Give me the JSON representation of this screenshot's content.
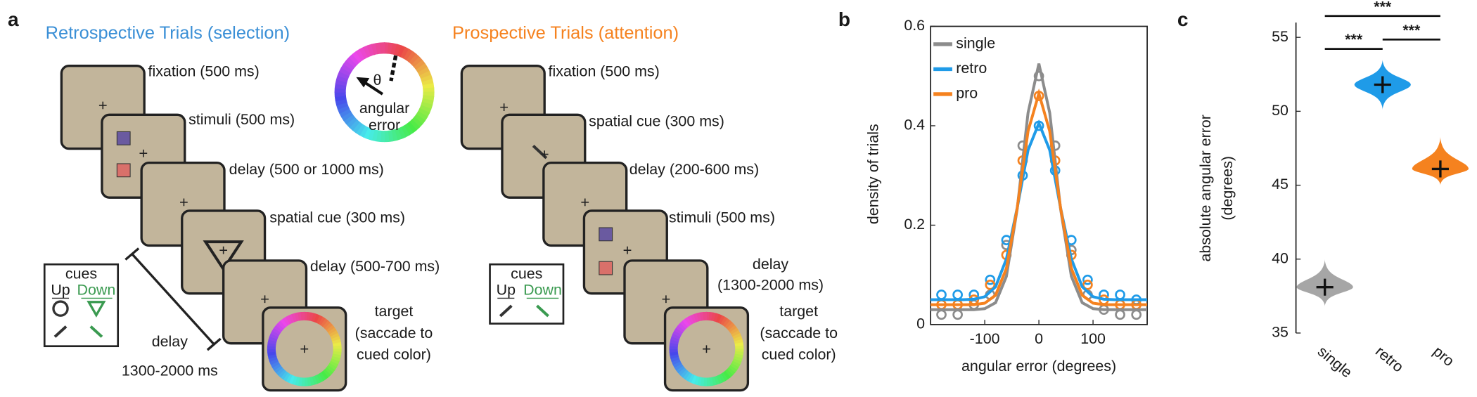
{
  "panel_labels": [
    "a",
    "b",
    "c"
  ],
  "panel_a": {
    "retro": {
      "title": "Retrospective Trials (selection)",
      "steps": [
        "fixation (500 ms)",
        "stimuli (500 ms)",
        "delay (500 or 1000 ms)",
        "spatial cue (300 ms)",
        "delay (500-700 ms)"
      ],
      "target": [
        "target",
        "(saccade to",
        "cued color)"
      ],
      "cues": {
        "title": "cues",
        "up": "Up",
        "down": "Down"
      },
      "delay_note": [
        "delay",
        "1300-2000 ms"
      ]
    },
    "wheel": {
      "theta": "θ",
      "label": [
        "angular",
        "error"
      ]
    },
    "pro": {
      "title": "Prospective Trials (attention)",
      "steps": [
        "fixation (500 ms)",
        "spatial cue (300 ms)",
        "delay (200-600 ms)",
        "stimuli (500 ms)"
      ],
      "delay": [
        "delay",
        "(1300-2000 ms)"
      ],
      "target": [
        "target",
        "(saccade to",
        "cued color)"
      ],
      "cues": {
        "title": "cues",
        "up": "Up",
        "down": "Down"
      }
    }
  },
  "chart_data": [
    {
      "type": "line",
      "xlabel": "angular error (degrees)",
      "ylabel": "density of trials",
      "xlim": [
        -200,
        200
      ],
      "ylim": [
        0,
        0.6
      ],
      "xticks": [
        -100,
        0,
        100
      ],
      "yticks": [
        0,
        0.2,
        0.4,
        0.6
      ],
      "legend": "upper left",
      "x": [
        -200,
        -180,
        -160,
        -140,
        -120,
        -100,
        -80,
        -60,
        -40,
        -20,
        0,
        20,
        40,
        60,
        80,
        100,
        120,
        140,
        160,
        180,
        200
      ],
      "point_x": [
        -180,
        -150,
        -120,
        -90,
        -60,
        -30,
        0,
        30,
        60,
        90,
        120,
        150,
        180
      ],
      "series": [
        {
          "name": "single",
          "color": "#8c8c8c",
          "values": [
            0.03,
            0.03,
            0.03,
            0.03,
            0.03,
            0.032,
            0.044,
            0.097,
            0.233,
            0.426,
            0.525,
            0.426,
            0.233,
            0.097,
            0.044,
            0.032,
            0.03,
            0.03,
            0.03,
            0.03,
            0.03
          ],
          "point_values": [
            0.02,
            0.02,
            0.04,
            0.06,
            0.16,
            0.36,
            0.5,
            0.36,
            0.15,
            0.06,
            0.03,
            0.02,
            0.02
          ]
        },
        {
          "name": "retro",
          "color": "#1f9be8",
          "values": [
            0.05,
            0.05,
            0.05,
            0.05,
            0.051,
            0.056,
            0.076,
            0.132,
            0.235,
            0.351,
            0.405,
            0.351,
            0.235,
            0.132,
            0.076,
            0.056,
            0.051,
            0.05,
            0.05,
            0.05,
            0.05
          ],
          "point_values": [
            0.06,
            0.06,
            0.06,
            0.09,
            0.17,
            0.3,
            0.4,
            0.31,
            0.17,
            0.09,
            0.06,
            0.06,
            0.05
          ]
        },
        {
          "name": "pro",
          "color": "#f5821f",
          "values": [
            0.04,
            0.04,
            0.04,
            0.04,
            0.04,
            0.043,
            0.059,
            0.113,
            0.235,
            0.389,
            0.465,
            0.389,
            0.235,
            0.113,
            0.059,
            0.043,
            0.04,
            0.04,
            0.04,
            0.04,
            0.04
          ],
          "point_values": [
            0.04,
            0.04,
            0.05,
            0.08,
            0.14,
            0.33,
            0.46,
            0.33,
            0.14,
            0.08,
            0.05,
            0.04,
            0.04
          ]
        }
      ]
    },
    {
      "type": "violin",
      "ylabel": [
        "absolute angular error",
        "(degrees)"
      ],
      "categories": [
        "single",
        "retro",
        "pro"
      ],
      "values": [
        38.1,
        51.8,
        46.1
      ],
      "violin_min": [
        36.8,
        50.1,
        45.0
      ],
      "violin_max": [
        40.0,
        53.5,
        48.3
      ],
      "colors": [
        "#a6a6a6",
        "#1f9be8",
        "#f5821f"
      ],
      "ylim": [
        35,
        56
      ],
      "yticks": [
        35,
        40,
        45,
        50,
        55
      ],
      "significance": [
        {
          "pair": [
            0,
            1
          ],
          "label": "***"
        },
        {
          "pair": [
            1,
            2
          ],
          "label": "***"
        },
        {
          "pair": [
            0,
            2
          ],
          "label": "***"
        }
      ]
    }
  ]
}
